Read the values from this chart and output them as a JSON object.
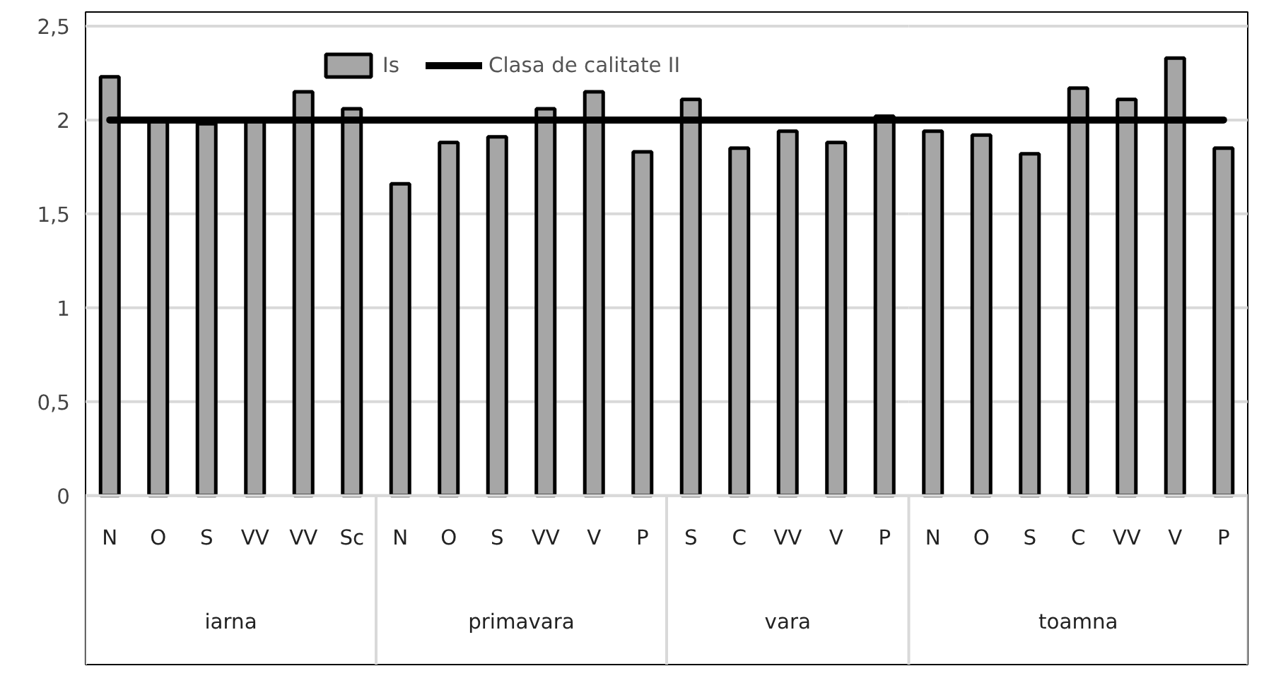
{
  "chart_data": [
    {
      "type": "bar",
      "xlabel": "iarna",
      "categories": [
        "N",
        "O",
        "S",
        "VV",
        "VV",
        "Sc"
      ],
      "series": [
        {
          "name": "Is",
          "color": "#a6a6a6",
          "values": [
            2.23,
            2.0,
            1.98,
            2.0,
            2.15,
            2.06
          ]
        }
      ],
      "ref_lines": [
        {
          "axis": "y",
          "value": 2,
          "label": "Clasa de calitate II",
          "color": "#000000"
        }
      ],
      "ylim": [
        0,
        2.5
      ],
      "yticks": [
        0,
        {
          "value": 0.5,
          "label": "0,5"
        },
        1,
        {
          "value": 1.5,
          "label": "1,5"
        },
        2,
        {
          "value": 2.5,
          "label": "2,5"
        }
      ],
      "grid": "y",
      "legend": "top right"
    },
    {
      "type": "bar",
      "xlabel": "primavara",
      "categories": [
        "N",
        "O",
        "S",
        "VV",
        "V",
        "P"
      ],
      "series": [
        {
          "color": "#a6a6a6",
          "values": [
            1.66,
            1.88,
            1.91,
            2.06,
            2.15,
            1.83
          ]
        }
      ],
      "ref_lines": [
        {
          "axis": "y",
          "value": 2,
          "color": "#000000"
        }
      ],
      "ylim": [
        0,
        2.5
      ],
      "yticks": [
        0,
        0.5,
        1,
        1.5,
        2,
        2.5
      ],
      "grid": "y",
      "tick_labels": "x"
    },
    {
      "type": "bar",
      "xlabel": "vara",
      "categories": [
        "S",
        "C",
        "VV",
        "V",
        "P"
      ],
      "series": [
        {
          "color": "#a6a6a6",
          "values": [
            2.11,
            1.85,
            1.94,
            1.88,
            2.02
          ]
        }
      ],
      "ref_lines": [
        {
          "axis": "y",
          "value": 2,
          "color": "#000000"
        }
      ],
      "ylim": [
        0,
        2.5
      ],
      "yticks": [
        0,
        0.5,
        1,
        1.5,
        2,
        2.5
      ],
      "grid": "y",
      "tick_labels": "x"
    },
    {
      "type": "bar",
      "xlabel": "toamna",
      "categories": [
        "N",
        "O",
        "S",
        "C",
        "VV",
        "V",
        "P"
      ],
      "series": [
        {
          "color": "#a6a6a6",
          "values": [
            1.94,
            1.92,
            1.82,
            2.17,
            2.11,
            2.33,
            1.85
          ]
        }
      ],
      "ref_lines": [
        {
          "axis": "y",
          "value": 2,
          "color": "#000000"
        }
      ],
      "ylim": [
        0,
        2.5
      ],
      "yticks": [
        0,
        0.5,
        1,
        1.5,
        2,
        2.5
      ],
      "grid": "y",
      "tick_labels": "x"
    }
  ]
}
